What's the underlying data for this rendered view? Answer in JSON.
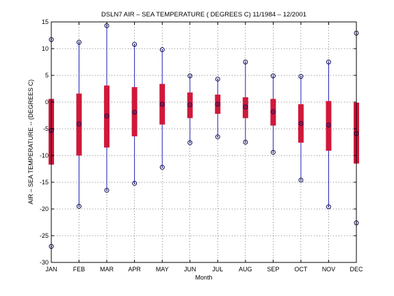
{
  "chart_data": {
    "type": "boxplot",
    "title": "DSLN7  AIR – SEA TEMPERATURE ( DEGREES C) 11/1984 – 12/2001",
    "xlabel": "Month",
    "ylabel": "AIR – SEA TEMPERATURE -- (DEGREES C)",
    "ylim": [
      -30,
      15
    ],
    "yticks": [
      15,
      10,
      5,
      0,
      -5,
      -10,
      -15,
      -20,
      -25,
      -30
    ],
    "grid": true,
    "colors": {
      "whisker": "#1f1fb4",
      "box": "#d0183a",
      "marker": "#0a0a50"
    },
    "categories": [
      "JAN",
      "FEB",
      "MAR",
      "APR",
      "MAY",
      "JUN",
      "JUL",
      "AUG",
      "SEP",
      "OCT",
      "NOV",
      "DEC"
    ],
    "min": [
      -27.0,
      -19.5,
      -16.5,
      -15.2,
      -12.2,
      -7.6,
      -6.5,
      -7.5,
      -9.4,
      -14.6,
      -19.6,
      -22.6
    ],
    "q1": [
      -11.7,
      -10.0,
      -8.5,
      -6.4,
      -4.2,
      -3.0,
      -2.2,
      -3.0,
      -4.4,
      -7.6,
      -9.1,
      -11.5
    ],
    "median": [
      -5.3,
      -4.1,
      -2.6,
      -1.9,
      -0.4,
      -0.5,
      -0.4,
      -0.9,
      -1.8,
      -4.0,
      -4.3,
      -5.9
    ],
    "q3": [
      0.6,
      1.6,
      3.1,
      2.8,
      3.4,
      1.8,
      1.4,
      0.9,
      0.6,
      -0.4,
      0.2,
      -0.1
    ],
    "max": [
      11.7,
      11.2,
      14.3,
      10.8,
      9.8,
      4.9,
      4.3,
      7.5,
      4.9,
      4.8,
      7.5,
      12.9
    ]
  }
}
